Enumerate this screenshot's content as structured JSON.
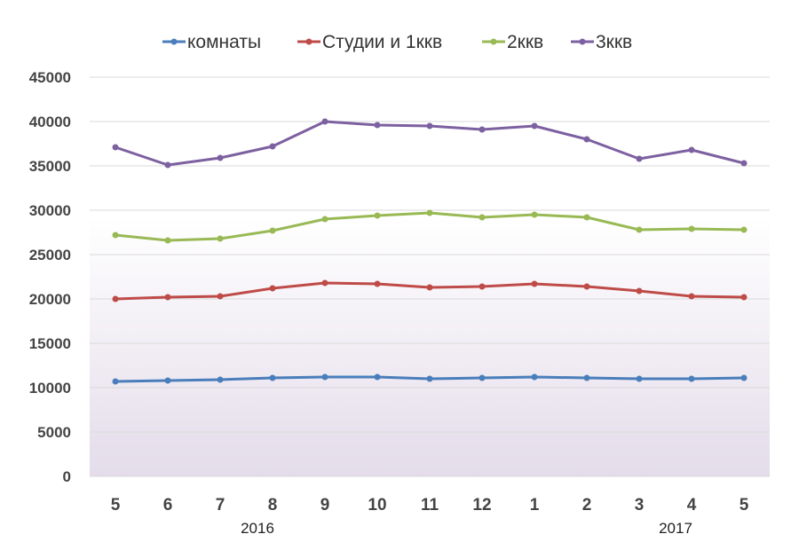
{
  "chart_data": {
    "type": "line",
    "title": "",
    "xlabel": "",
    "ylabel": "",
    "categories": [
      "5",
      "6",
      "7",
      "8",
      "9",
      "10",
      "11",
      "12",
      "1",
      "2",
      "3",
      "4",
      "5"
    ],
    "year_labels": [
      "2016",
      "2017"
    ],
    "ylim": [
      0,
      45000
    ],
    "yticks": [
      0,
      5000,
      10000,
      15000,
      20000,
      25000,
      30000,
      35000,
      40000,
      45000
    ],
    "grid": true,
    "legend_position": "top",
    "series": [
      {
        "name": "комнаты",
        "color": "#4a7ebb",
        "values": [
          10700,
          10800,
          10900,
          11100,
          11200,
          11200,
          11000,
          11100,
          11200,
          11100,
          11000,
          11000,
          11100
        ]
      },
      {
        "name": "Студии и 1ккв",
        "color": "#be4b48",
        "values": [
          20000,
          20200,
          20300,
          21200,
          21800,
          21700,
          21300,
          21400,
          21700,
          21400,
          20900,
          20300,
          20200
        ]
      },
      {
        "name": "2ккв",
        "color": "#98b954",
        "values": [
          27200,
          26600,
          26800,
          27700,
          29000,
          29400,
          29700,
          29200,
          29500,
          29200,
          27800,
          27900,
          27800
        ]
      },
      {
        "name": "3ккв",
        "color": "#7d60a0",
        "values": [
          37100,
          35100,
          35900,
          37200,
          40000,
          39600,
          39500,
          39100,
          39500,
          38000,
          35800,
          36800,
          35300
        ]
      }
    ]
  }
}
